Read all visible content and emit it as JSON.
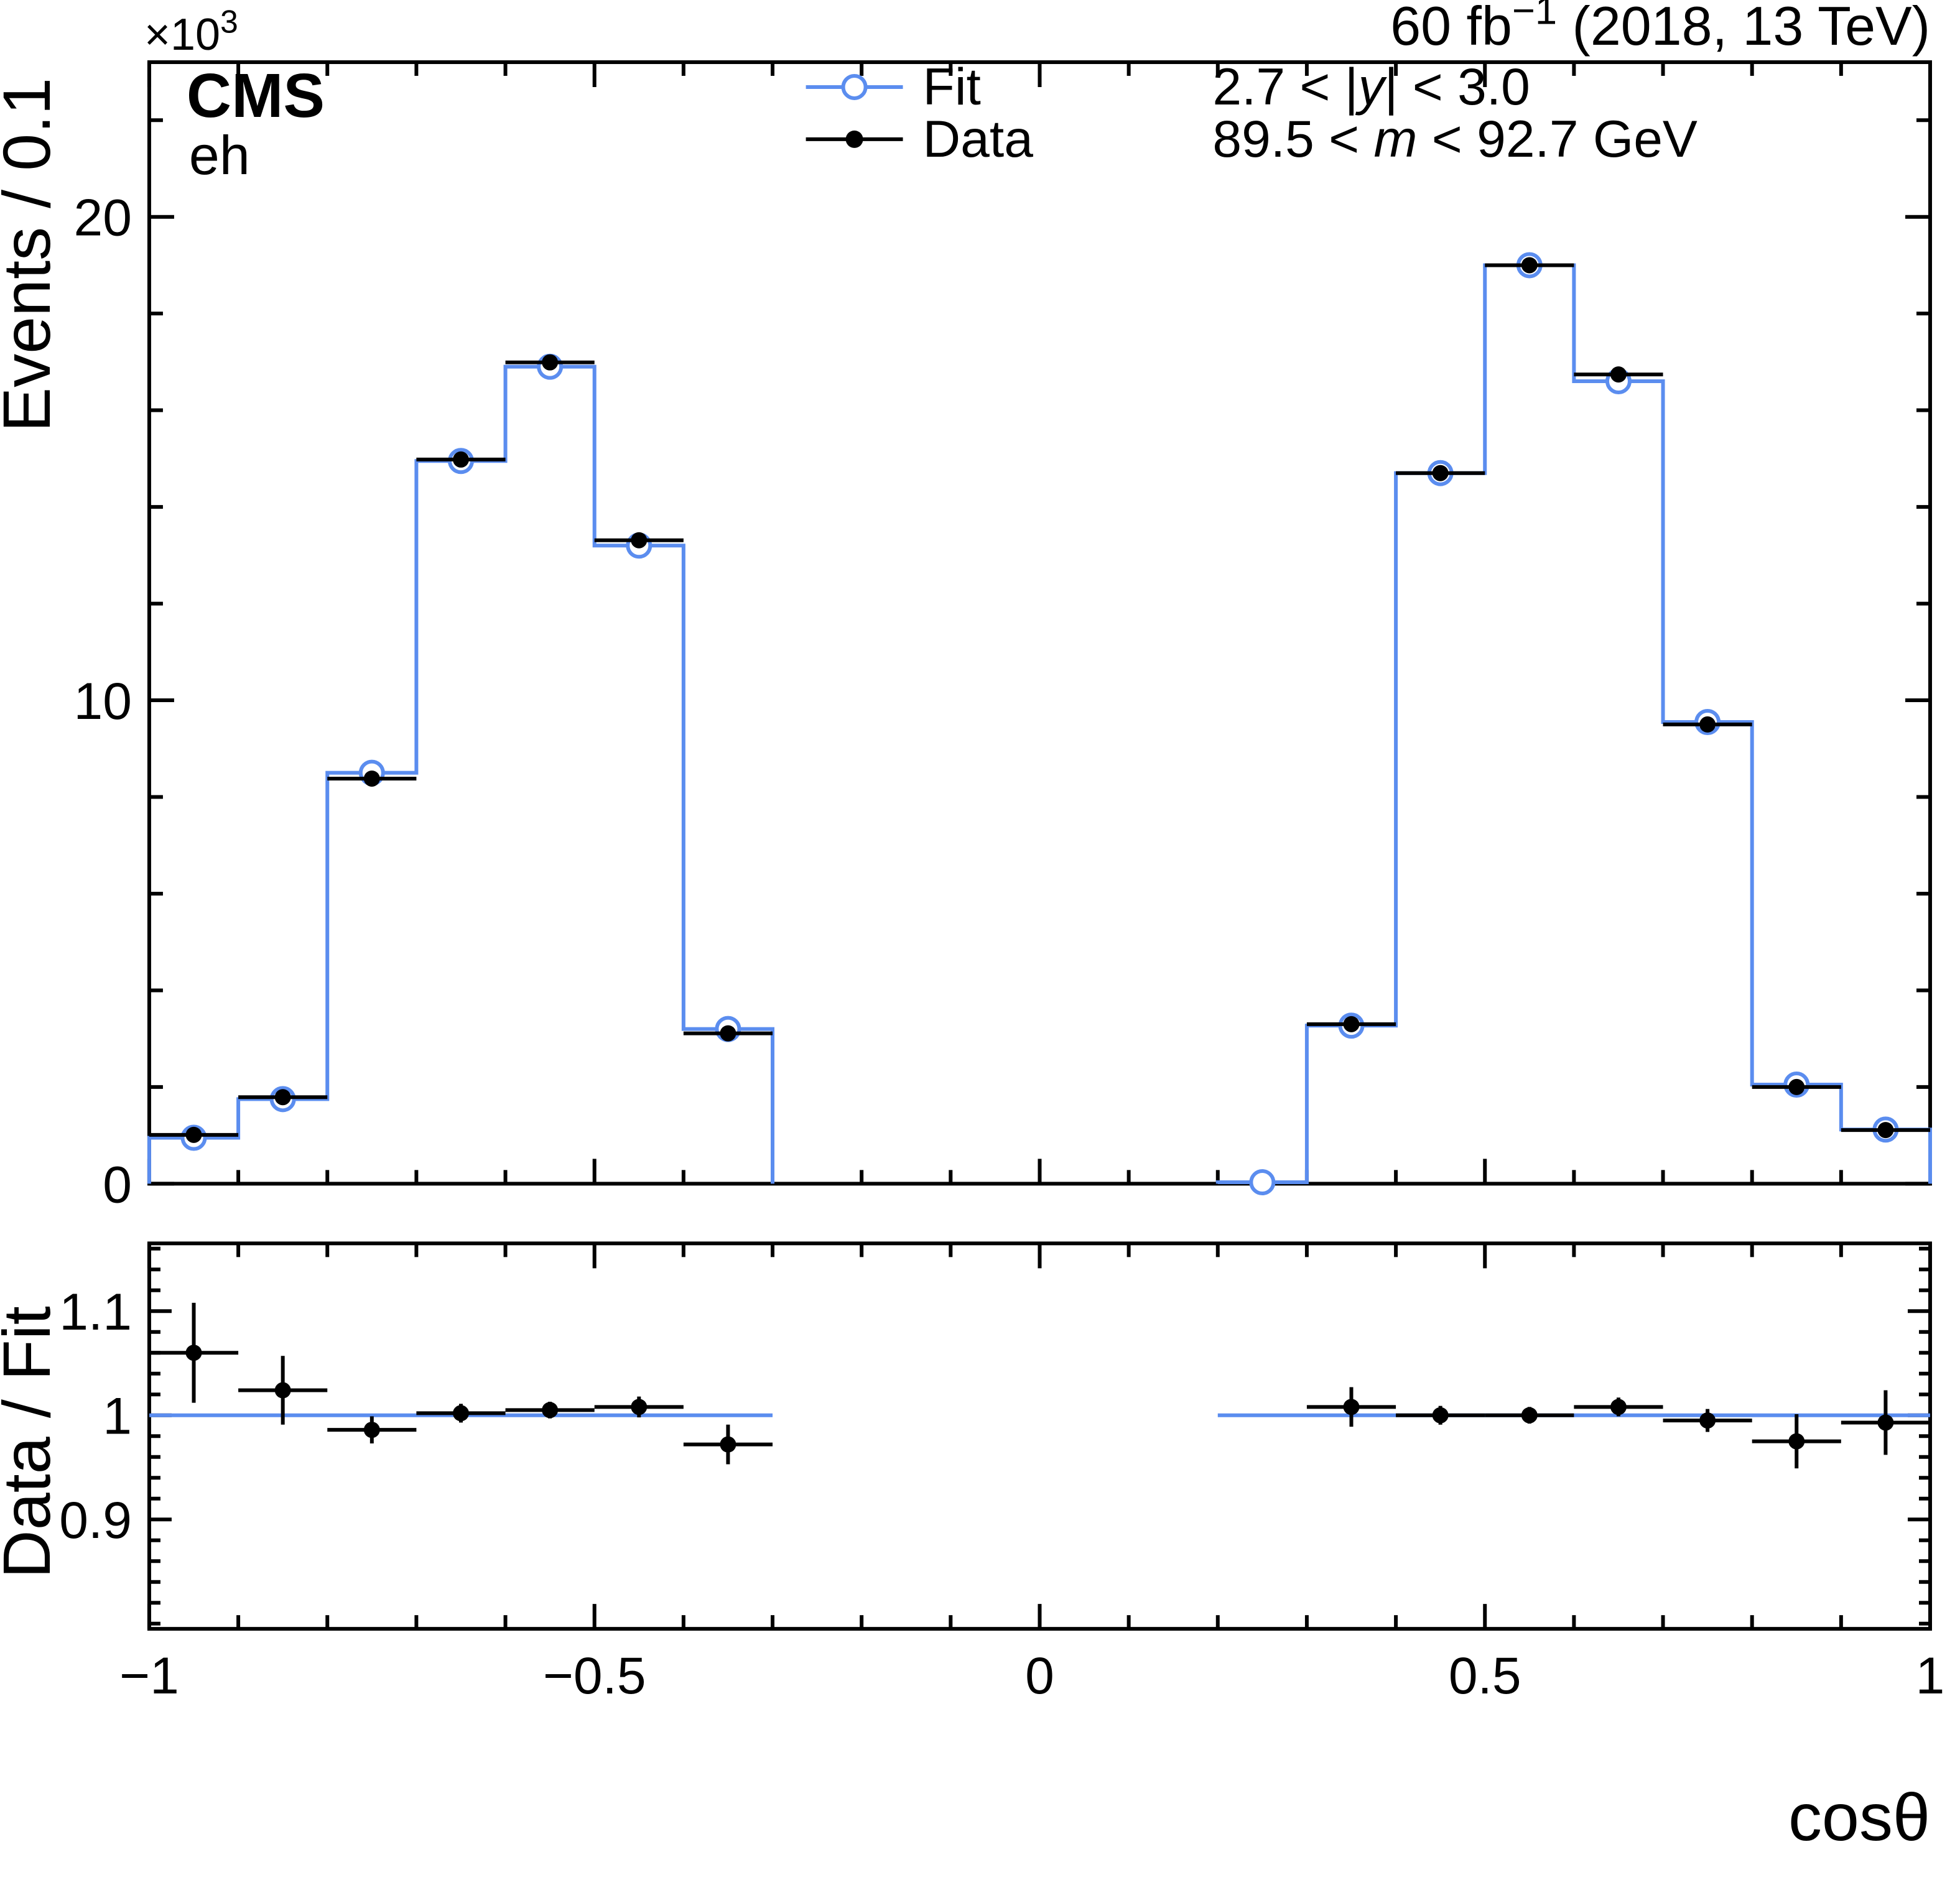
{
  "labels": {
    "cms": "CMS",
    "channel": "eh",
    "lumi_parts": [
      {
        "t": "60 fb"
      },
      {
        "t": "−1",
        "sup": true
      },
      {
        "t": " (2018, 13 TeV)"
      }
    ],
    "selection_lines": [
      [
        {
          "t": "2.7 < |"
        },
        {
          "t": "y",
          "i": true
        },
        {
          "t": "| < 3.0"
        }
      ],
      [
        {
          "t": "89.5 < "
        },
        {
          "t": "m",
          "i": true
        },
        {
          "t": " < 92.7 GeV"
        }
      ]
    ]
  },
  "legend": {
    "items": [
      {
        "label": "Fit",
        "marker": "open-circle",
        "color": "#5b8def"
      },
      {
        "label": "Data",
        "marker": "filled-circle",
        "color": "#000000"
      }
    ]
  },
  "chart_data": {
    "type": "histogram",
    "title": "",
    "xlabel": "cosθ",
    "xlim": [
      -1,
      1
    ],
    "x_major_ticks": [
      -1,
      -0.5,
      0,
      0.5,
      1
    ],
    "x_tick_labels": [
      "−1",
      "−0.5",
      "0",
      "0.5",
      "1"
    ],
    "x_minor_step": 0.1,
    "bin_width": 0.1,
    "fit_color": "#5b8def",
    "data_color": "#000000",
    "main": {
      "ylabel": "Events / 0.1",
      "scale_parts": [
        {
          "t": "×10"
        },
        {
          "t": "3",
          "sup": true
        }
      ],
      "ylim": [
        0,
        23.2
      ],
      "y_major_ticks": [
        0,
        10,
        20
      ],
      "y_tick_labels": [
        "0",
        "10",
        "20"
      ],
      "y_minor_step": 2,
      "fit_bins": [
        {
          "center": -0.95,
          "value": 0.95
        },
        {
          "center": -0.85,
          "value": 1.75
        },
        {
          "center": -0.75,
          "value": 8.5
        },
        {
          "center": -0.65,
          "value": 14.95
        },
        {
          "center": -0.55,
          "value": 16.9
        },
        {
          "center": -0.45,
          "value": 13.2
        },
        {
          "center": -0.35,
          "value": 3.2
        },
        {
          "center": 0.25,
          "value": 0.03
        },
        {
          "center": 0.35,
          "value": 3.27
        },
        {
          "center": 0.45,
          "value": 14.7
        },
        {
          "center": 0.55,
          "value": 19.0
        },
        {
          "center": 0.65,
          "value": 16.6
        },
        {
          "center": 0.75,
          "value": 9.55
        },
        {
          "center": 0.85,
          "value": 2.05
        },
        {
          "center": 0.95,
          "value": 1.12
        }
      ],
      "data_points": [
        {
          "center": -0.95,
          "value": 1.01,
          "err": 0.05
        },
        {
          "center": -0.85,
          "value": 1.79,
          "err": 0.06
        },
        {
          "center": -0.75,
          "value": 8.38,
          "err": 0.1
        },
        {
          "center": -0.65,
          "value": 14.98,
          "err": 0.13
        },
        {
          "center": -0.55,
          "value": 16.99,
          "err": 0.14
        },
        {
          "center": -0.45,
          "value": 13.31,
          "err": 0.12
        },
        {
          "center": -0.35,
          "value": 3.11,
          "err": 0.06
        },
        {
          "center": 0.35,
          "value": 3.3,
          "err": 0.06
        },
        {
          "center": 0.45,
          "value": 14.7,
          "err": 0.13
        },
        {
          "center": 0.55,
          "value": 19.0,
          "err": 0.14
        },
        {
          "center": 0.65,
          "value": 16.74,
          "err": 0.14
        },
        {
          "center": 0.75,
          "value": 9.5,
          "err": 0.1
        },
        {
          "center": 0.85,
          "value": 2.0,
          "err": 0.05
        },
        {
          "center": 0.95,
          "value": 1.11,
          "err": 0.04
        }
      ]
    },
    "ratio": {
      "ylabel": "Data / Fit",
      "ylim": [
        0.795,
        1.165
      ],
      "y_major_ticks": [
        0.9,
        1.0,
        1.1
      ],
      "y_tick_labels": [
        "0.9",
        "1",
        "1.1"
      ],
      "y_minor_step": 0.02,
      "fit_line_value": 1.0,
      "fit_line_segments": [
        [
          -1,
          -0.3
        ],
        [
          0.2,
          1.0
        ]
      ],
      "points": [
        {
          "center": -0.95,
          "value": 1.06,
          "err": 0.048
        },
        {
          "center": -0.85,
          "value": 1.024,
          "err": 0.033
        },
        {
          "center": -0.75,
          "value": 0.986,
          "err": 0.013
        },
        {
          "center": -0.65,
          "value": 1.002,
          "err": 0.009
        },
        {
          "center": -0.55,
          "value": 1.005,
          "err": 0.008
        },
        {
          "center": -0.45,
          "value": 1.008,
          "err": 0.01
        },
        {
          "center": -0.35,
          "value": 0.972,
          "err": 0.019
        },
        {
          "center": 0.35,
          "value": 1.008,
          "err": 0.019
        },
        {
          "center": 0.45,
          "value": 1.0,
          "err": 0.009
        },
        {
          "center": 0.55,
          "value": 1.0,
          "err": 0.008
        },
        {
          "center": 0.65,
          "value": 1.008,
          "err": 0.009
        },
        {
          "center": 0.75,
          "value": 0.995,
          "err": 0.011
        },
        {
          "center": 0.85,
          "value": 0.975,
          "err": 0.026
        },
        {
          "center": 0.95,
          "value": 0.993,
          "err": 0.031
        }
      ]
    }
  }
}
